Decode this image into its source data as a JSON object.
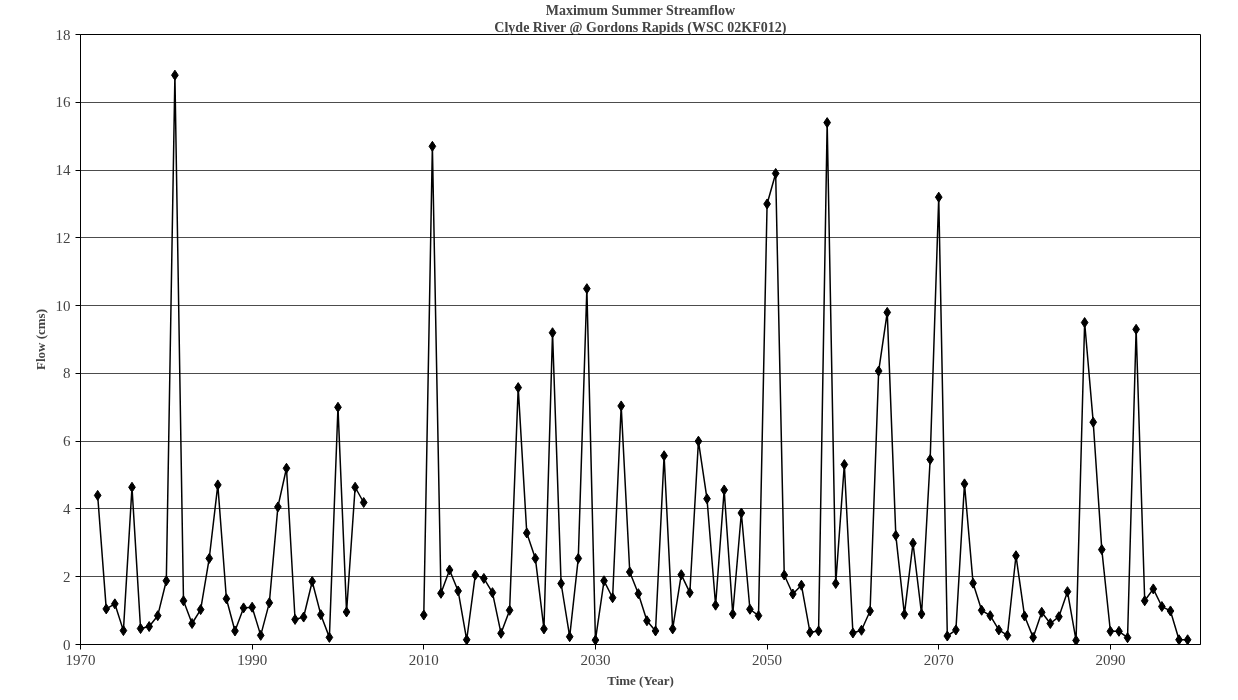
{
  "chart_data": {
    "type": "line",
    "title": "Maximum Summer Streamflow",
    "subtitle": "Clyde River @ Gordons Rapids (WSC 02KF012)",
    "xlabel": "Time (Year)",
    "ylabel": "Flow (cms)",
    "x": [
      1972,
      1973,
      1974,
      1975,
      1976,
      1977,
      1978,
      1979,
      1980,
      1981,
      1982,
      1983,
      1984,
      1985,
      1986,
      1987,
      1988,
      1989,
      1990,
      1991,
      1992,
      1993,
      1994,
      1995,
      1996,
      1997,
      1998,
      1999,
      2000,
      2001,
      2002,
      2003,
      2004,
      2005,
      2006,
      2007,
      2008,
      2009,
      2010,
      2011,
      2012,
      2013,
      2014,
      2015,
      2016,
      2017,
      2018,
      2019,
      2020,
      2021,
      2022,
      2023,
      2024,
      2025,
      2026,
      2027,
      2028,
      2029,
      2030,
      2031,
      2032,
      2033,
      2034,
      2035,
      2036,
      2037,
      2038,
      2039,
      2040,
      2041,
      2042,
      2043,
      2044,
      2045,
      2046,
      2047,
      2048,
      2049,
      2050,
      2051,
      2052,
      2053,
      2054,
      2055,
      2056,
      2057,
      2058,
      2059,
      2060,
      2061,
      2062,
      2063,
      2064,
      2065,
      2066,
      2067,
      2068,
      2069,
      2070,
      2071,
      2072,
      2073,
      2074,
      2075,
      2076,
      2077,
      2078,
      2079,
      2080,
      2081,
      2082,
      2083,
      2084,
      2085,
      2086,
      2087,
      2088,
      2089,
      2090,
      2091,
      2092,
      2093,
      2094,
      2095,
      2096,
      2097,
      2098,
      2099
    ],
    "series": [
      {
        "color": "#000000",
        "values": [
          4.4,
          1.05,
          1.2,
          0.41,
          4.64,
          0.47,
          0.53,
          0.85,
          1.88,
          16.8,
          1.29,
          0.62,
          1.03,
          2.54,
          4.71,
          1.35,
          0.4,
          1.08,
          1.1,
          0.27,
          1.23,
          4.06,
          5.2,
          0.74,
          0.81,
          1.86,
          0.88,
          0.21,
          7.0,
          0.96,
          4.64,
          4.19,
          null,
          null,
          null,
          null,
          null,
          null,
          0.87,
          14.7,
          1.51,
          2.2,
          1.58,
          0.14,
          2.05,
          1.95,
          1.53,
          0.33,
          1.01,
          7.58,
          3.29,
          2.54,
          0.46,
          9.2,
          1.8,
          0.23,
          2.54,
          10.5,
          0.13,
          1.88,
          1.38,
          7.04,
          2.14,
          1.5,
          0.7,
          0.4,
          5.57,
          0.46,
          2.06,
          1.53,
          6.0,
          4.3,
          1.16,
          4.56,
          0.9,
          3.88,
          1.04,
          0.85,
          13.0,
          13.9,
          2.05,
          1.49,
          1.75,
          0.36,
          0.4,
          15.4,
          1.8,
          5.31,
          0.34,
          0.42,
          0.99,
          8.07,
          9.8,
          3.22,
          0.89,
          2.99,
          0.9,
          5.46,
          13.2,
          0.25,
          0.43,
          4.74,
          1.81,
          1.01,
          0.85,
          0.43,
          0.27,
          2.62,
          0.84,
          0.21,
          0.95,
          0.62,
          0.82,
          1.56,
          0.12,
          9.5,
          6.56,
          2.8,
          0.39,
          0.39,
          0.2,
          9.3,
          1.29,
          1.64,
          1.12,
          0.99,
          0.14,
          0.14
        ]
      }
    ],
    "xlim": [
      1970,
      2100.5
    ],
    "xticks": [
      1970,
      1990,
      2010,
      2030,
      2050,
      2070,
      2090
    ],
    "ylim": [
      0,
      18
    ],
    "yticks": [
      0,
      2,
      4,
      6,
      8,
      10,
      12,
      14,
      16,
      18
    ],
    "grid": "y",
    "marker": "diamond",
    "line_style": "solid"
  }
}
